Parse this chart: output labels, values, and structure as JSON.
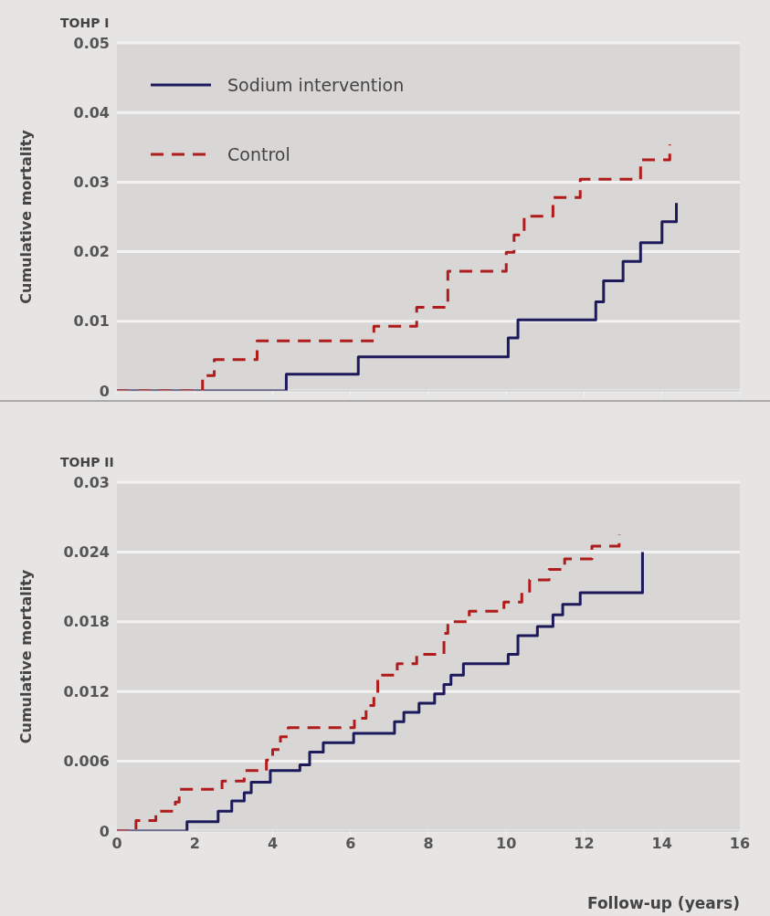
{
  "chart_data": [
    {
      "type": "step",
      "title": "TOHP I",
      "ylabel": "Cumulative mortality",
      "xlim": [
        0,
        16
      ],
      "xticks": [
        {
          "value": 0,
          "label": null
        },
        {
          "value": 2,
          "label": null
        },
        {
          "value": 4,
          "label": null
        },
        {
          "value": 6,
          "label": null
        },
        {
          "value": 8,
          "label": null
        },
        {
          "value": 10,
          "label": null
        },
        {
          "value": 12,
          "label": null
        },
        {
          "value": 14,
          "label": null
        },
        {
          "value": 16,
          "label": null
        }
      ],
      "ylim": [
        0,
        0.05
      ],
      "yticks": [
        0,
        0.01,
        0.02,
        0.03,
        0.04,
        0.05
      ],
      "grid": "y",
      "legend": "top left",
      "tick_labels": "y",
      "series": [
        {
          "name": "Sodium intervention",
          "color": "#1c1a5a",
          "line_style": "solid",
          "x": [
            0,
            4.35,
            6.2,
            10.05,
            10.3,
            12.3,
            12.5,
            13.0,
            13.45,
            14.0,
            14.37
          ],
          "values": [
            0,
            0.0024,
            0.0049,
            0.0076,
            0.0102,
            0.0128,
            0.0158,
            0.0186,
            0.0213,
            0.0243,
            0.027
          ]
        },
        {
          "name": "Control",
          "color": "#b01c1c",
          "line_style": "dashed",
          "x": [
            0,
            2.2,
            2.5,
            3.6,
            6.6,
            7.7,
            8.5,
            10.0,
            10.2,
            10.46,
            11.2,
            11.9,
            13.45,
            14.2
          ],
          "values": [
            0,
            0.0022,
            0.0045,
            0.0072,
            0.0093,
            0.012,
            0.0172,
            0.0199,
            0.0224,
            0.0251,
            0.0278,
            0.0304,
            0.0332,
            0.0354
          ]
        }
      ]
    },
    {
      "type": "step",
      "title": "TOHP II",
      "ylabel": "Cumulative mortality",
      "xlabel": "Follow-up (years)",
      "xlim": [
        0,
        16
      ],
      "xticks": [
        0,
        2,
        4,
        6,
        8,
        10,
        12,
        14,
        16
      ],
      "ylim": [
        0,
        0.03
      ],
      "yticks": [
        0,
        0.006,
        0.012,
        0.018,
        0.024,
        0.03
      ],
      "grid": "y",
      "series": [
        {
          "color": "#1c1a5a",
          "line_style": "solid",
          "x": [
            0,
            1.8,
            2.6,
            2.95,
            3.27,
            3.45,
            3.94,
            4.7,
            4.95,
            5.3,
            6.08,
            7.13,
            7.37,
            7.76,
            8.16,
            8.4,
            8.58,
            8.9,
            10.05,
            10.3,
            10.8,
            11.2,
            11.45,
            11.9,
            13.5
          ],
          "values": [
            0,
            0.0008,
            0.0017,
            0.0026,
            0.0033,
            0.0042,
            0.0052,
            0.0057,
            0.0068,
            0.0076,
            0.0084,
            0.0094,
            0.0102,
            0.011,
            0.0118,
            0.0126,
            0.0134,
            0.0144,
            0.0152,
            0.0168,
            0.0176,
            0.0186,
            0.0195,
            0.0205,
            0.024
          ]
        },
        {
          "color": "#b01c1c",
          "line_style": "dashed",
          "x": [
            0,
            0.49,
            1.0,
            1.5,
            1.6,
            2.7,
            3.27,
            3.84,
            4.0,
            4.2,
            4.4,
            6.1,
            6.4,
            6.6,
            6.7,
            7.2,
            7.7,
            8.4,
            8.5,
            9.05,
            9.94,
            10.4,
            10.6,
            11.1,
            11.5,
            12.2,
            12.9
          ],
          "values": [
            0,
            0.0009,
            0.0017,
            0.0025,
            0.0036,
            0.0043,
            0.0052,
            0.0061,
            0.007,
            0.0081,
            0.0089,
            0.0097,
            0.0108,
            0.0116,
            0.0134,
            0.0144,
            0.0152,
            0.017,
            0.018,
            0.0189,
            0.0197,
            0.0205,
            0.0216,
            0.0225,
            0.0234,
            0.0245,
            0.0255
          ]
        }
      ]
    }
  ]
}
